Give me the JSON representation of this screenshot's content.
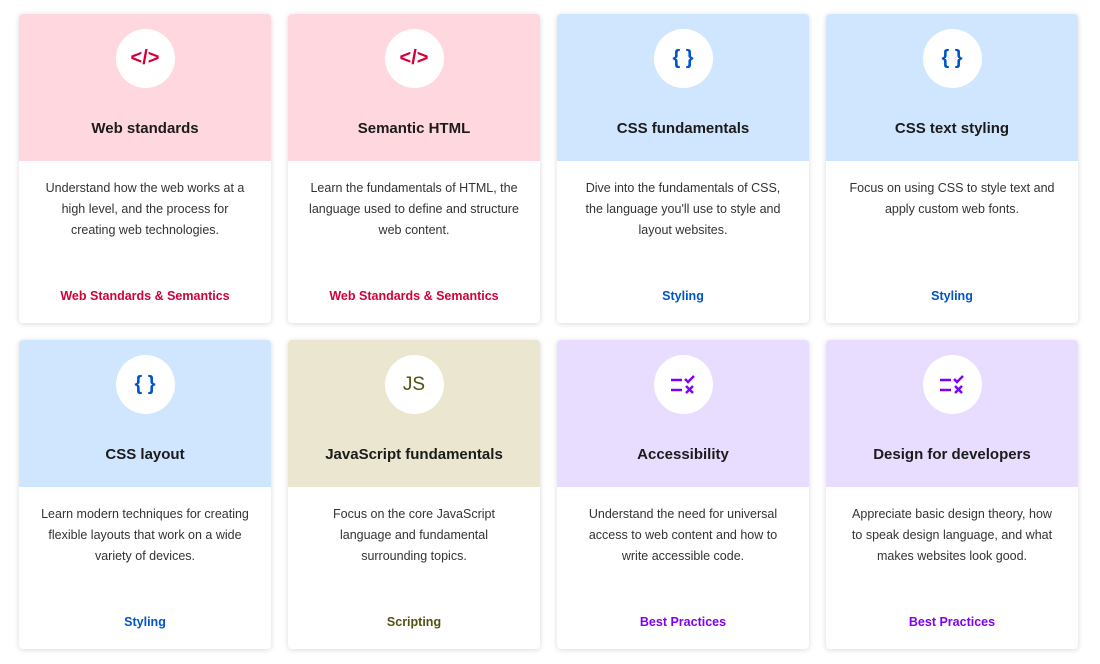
{
  "themes": {
    "red": {
      "bg": "#ffd7de",
      "fg": "#d30038"
    },
    "blue": {
      "bg": "#d0e6ff",
      "fg": "#0055c8"
    },
    "js": {
      "bg": "#ebe6cf",
      "fg": "#54520f"
    },
    "purple": {
      "bg": "#e9ddff",
      "fg": "#8000f5"
    }
  },
  "cards": [
    {
      "icon": "code-icon",
      "glyph": "</>",
      "title": "Web standards",
      "description": "Understand how the web works at a high level, and the process for creating web technologies.",
      "tag": "Web Standards & Semantics",
      "theme": "red"
    },
    {
      "icon": "code-icon",
      "glyph": "</>",
      "title": "Semantic HTML",
      "description": "Learn the fundamentals of HTML, the language used to define and structure web content.",
      "tag": "Web Standards & Semantics",
      "theme": "red"
    },
    {
      "icon": "curly-braces-icon",
      "glyph": "{ }",
      "title": "CSS fundamentals",
      "description": "Dive into the fundamentals of CSS, the language you'll use to style and layout websites.",
      "tag": "Styling",
      "theme": "blue"
    },
    {
      "icon": "curly-braces-icon",
      "glyph": "{ }",
      "title": "CSS text styling",
      "description": "Focus on using CSS to style text and apply custom web fonts.",
      "tag": "Styling",
      "theme": "blue"
    },
    {
      "icon": "curly-braces-icon",
      "glyph": "{ }",
      "title": "CSS layout",
      "description": "Learn modern techniques for creating flexible layouts that work on a wide variety of devices.",
      "tag": "Styling",
      "theme": "blue"
    },
    {
      "icon": "js-icon",
      "glyph": "JS",
      "title": "JavaScript fundamentals",
      "description": "Focus on the core JavaScript language and fundamental surrounding topics.",
      "tag": "Scripting",
      "theme": "js"
    },
    {
      "icon": "checklist-icon",
      "glyph": "=✓",
      "title": "Accessibility",
      "description": "Understand the need for universal access to web content and how to write accessible code.",
      "tag": "Best Practices",
      "theme": "purple"
    },
    {
      "icon": "checklist-icon",
      "glyph": "=✓",
      "title": "Design for developers",
      "description": "Appreciate basic design theory, how to speak design language, and what makes websites look good.",
      "tag": "Best Practices",
      "theme": "purple"
    }
  ]
}
